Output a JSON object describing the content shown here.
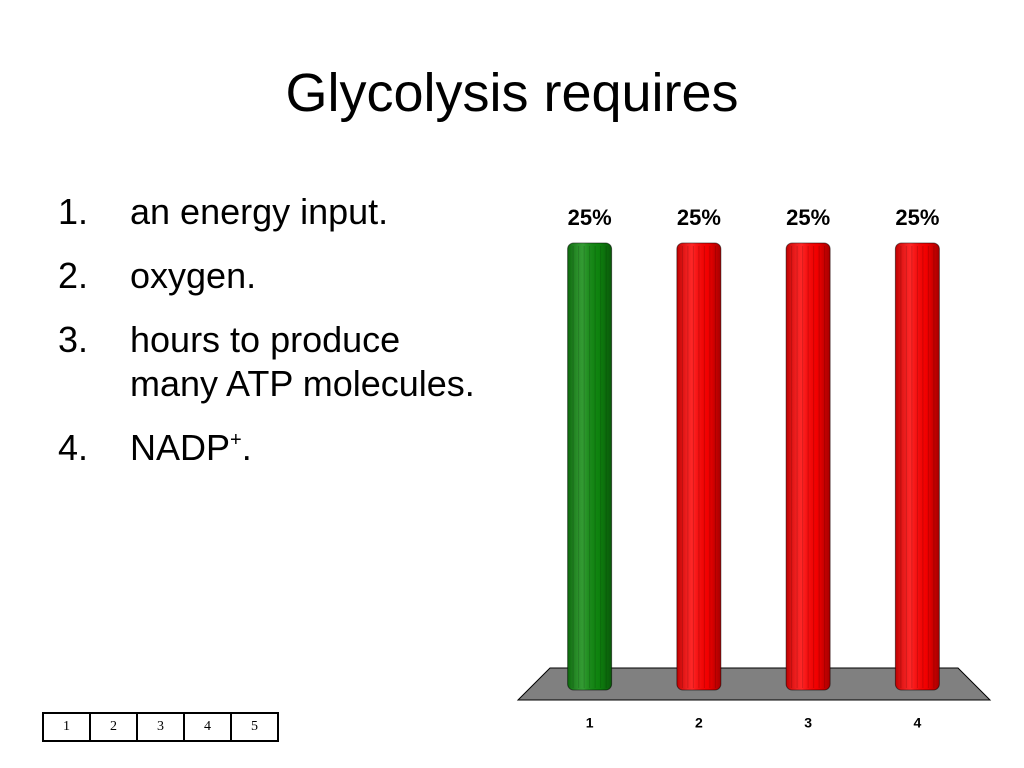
{
  "title": "Glycolysis requires",
  "list": [
    {
      "number": "1.",
      "text": "an energy input."
    },
    {
      "number": "2.",
      "text": "oxygen."
    },
    {
      "number": "3.",
      "text": "hours to produce many ATP molecules."
    },
    {
      "number": "4.",
      "text": "NADP",
      "superscript": "+",
      "tail": "."
    }
  ],
  "answer_boxes": [
    "1",
    "2",
    "3",
    "4",
    "5"
  ],
  "chart_data": {
    "type": "bar",
    "categories": [
      "1",
      "2",
      "3",
      "4"
    ],
    "values": [
      25,
      25,
      25,
      25
    ],
    "value_labels": [
      "25%",
      "25%",
      "25%",
      "25%"
    ],
    "colors": [
      "#0f8a0f",
      "#ff0000",
      "#ff0000",
      "#ff0000"
    ],
    "ylim": [
      0,
      25
    ]
  }
}
